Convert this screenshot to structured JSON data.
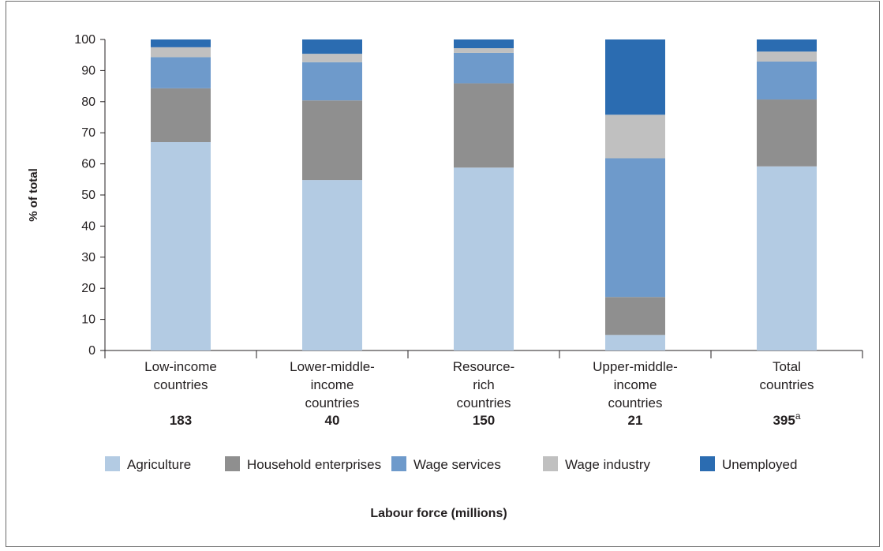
{
  "chart_data": {
    "type": "bar",
    "stacked": true,
    "categories": [
      [
        "Low-income",
        "countries"
      ],
      [
        "Lower-middle-",
        "income",
        "countries"
      ],
      [
        "Resource-",
        "rich",
        "countries"
      ],
      [
        "Upper-middle-",
        "income",
        "countries"
      ],
      [
        "Total",
        "countries"
      ]
    ],
    "labour_force": [
      {
        "value": "183",
        "sup": ""
      },
      {
        "value": "40",
        "sup": ""
      },
      {
        "value": "150",
        "sup": ""
      },
      {
        "value": "21",
        "sup": ""
      },
      {
        "value": "395",
        "sup": "a"
      }
    ],
    "series": [
      {
        "name": "Agriculture",
        "color": "#b3cbe3",
        "values": [
          67,
          54.8,
          58.8,
          5,
          59.2
        ]
      },
      {
        "name": "Household enterprises",
        "color": "#8f8f8f",
        "values": [
          17.3,
          25.6,
          27.1,
          12.2,
          21.5
        ]
      },
      {
        "name": "Wage services",
        "color": "#6e9acb",
        "values": [
          10,
          12.3,
          9.8,
          44.6,
          12.2
        ]
      },
      {
        "name": "Wage industry",
        "color": "#c0c0c0",
        "values": [
          3.2,
          2.7,
          1.5,
          14,
          3.2
        ]
      },
      {
        "name": "Unemployed",
        "color": "#2b6cb1",
        "values": [
          2.5,
          4.6,
          2.8,
          24.2,
          3.9
        ]
      }
    ],
    "ylabel": "% of total",
    "xlabel": "Labour force (millions)",
    "ylim": [
      0,
      100
    ],
    "yticks": [
      0,
      10,
      20,
      30,
      40,
      50,
      60,
      70,
      80,
      90,
      100
    ],
    "grid": false,
    "legend_position": "bottom"
  }
}
